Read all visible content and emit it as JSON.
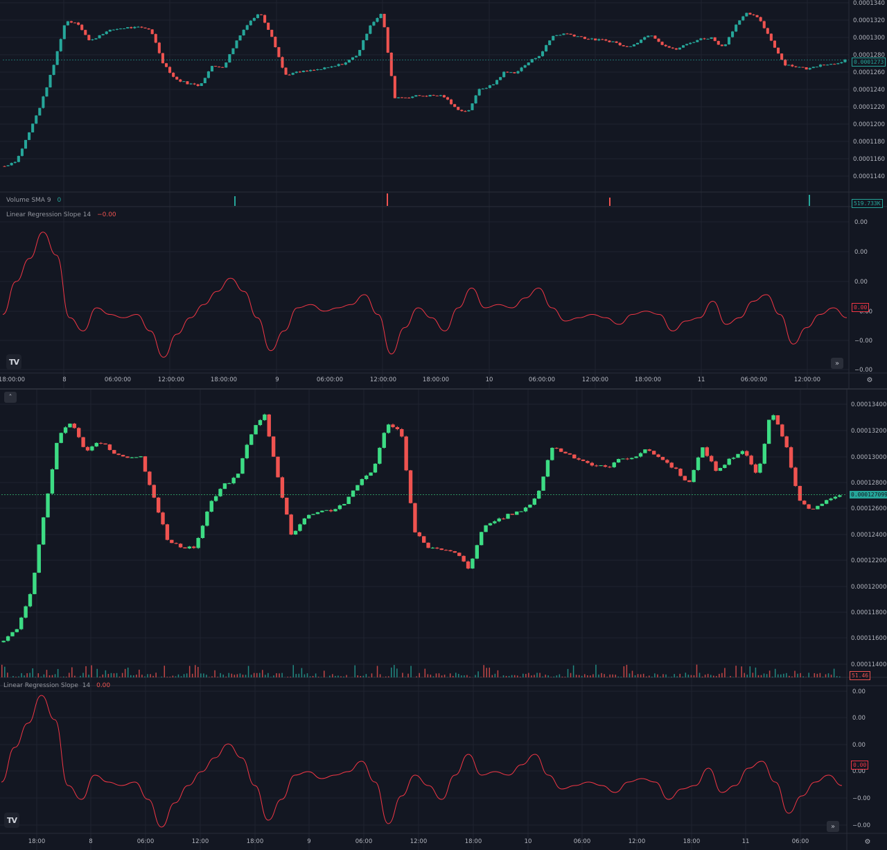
{
  "colors": {
    "up": "#26a69a",
    "up_bright": "#3ddc84",
    "down": "#ef5350",
    "line": "#f23645",
    "grid": "#1f2330",
    "bg": "#131722",
    "text": "#b2b5be"
  },
  "top": {
    "price_ticks": [
      "0.0001340",
      "0.0001320",
      "0.0001300",
      "0.0001280",
      "0.0001260",
      "0.0001240",
      "0.0001220",
      "0.0001200",
      "0.0001180",
      "0.0001160",
      "0.0001140"
    ],
    "last_price": "0.0001273",
    "volume_label": "Volume SMA 9",
    "volume_value": "0",
    "volume_tag": "519.733K",
    "indicator_label": "Linear Regression Slope 14",
    "indicator_value": "−0.00",
    "slope_ticks": [
      "0.00",
      "0.00",
      "0.00",
      "−0.00",
      "−0.00",
      "−0.00"
    ],
    "slope_tag": "0.00",
    "time_labels": [
      "18:00:00",
      "8",
      "06:00:00",
      "12:00:00",
      "18:00:00",
      "9",
      "06:00:00",
      "12:00:00",
      "18:00:00",
      "10",
      "06:00:00",
      "12:00:00",
      "18:00:00",
      "11",
      "06:00:00",
      "12:00:00"
    ],
    "logo_text": "TV",
    "goto_icon": "double-chevron-right-icon",
    "settings_icon": "gear-icon"
  },
  "bottom": {
    "price_ticks": [
      "0.000134000",
      "0.000132000",
      "0.000130000",
      "0.000128000",
      "0.000126000",
      "0.000124000",
      "0.000122000",
      "0.000120000",
      "0.000118000",
      "0.000116000",
      "0.000114000"
    ],
    "last_price": "0.000127099",
    "volume_tag": "51.46",
    "indicator_label": "Linear Regression Slope",
    "indicator_len": "14",
    "indicator_value": "0.00",
    "slope_ticks": [
      "0.00",
      "0.00",
      "0.00",
      "0.00",
      "−0.00",
      "−0.00"
    ],
    "slope_tag": "0.00",
    "time_labels": [
      "18:00",
      "8",
      "06:00",
      "12:00",
      "18:00",
      "9",
      "06:00",
      "12:00",
      "18:00",
      "10",
      "06:00",
      "12:00",
      "18:00",
      "11",
      "06:00"
    ],
    "logo_text": "TV",
    "collapse_icon": "chevron-up-icon",
    "goto_icon": "double-chevron-right-icon",
    "settings_icon": "gear-icon"
  },
  "chart_data": [
    {
      "type": "candlestick",
      "title": "",
      "ylim": [
        0.000113,
        0.0001342
      ],
      "close_path": [
        0.0001145,
        0.0001152,
        0.0001185,
        0.000122,
        0.0001265,
        0.000132,
        0.0001318,
        0.0001295,
        0.0001305,
        0.000131,
        0.0001312,
        0.0001312,
        0.000131,
        0.000127,
        0.000125,
        0.0001245,
        0.0001242,
        0.0001265,
        0.0001265,
        0.0001295,
        0.0001318,
        0.000133,
        0.00013,
        0.0001255,
        0.0001258,
        0.000126,
        0.0001262,
        0.0001265,
        0.000127,
        0.000128,
        0.0001315,
        0.000133,
        0.0001228,
        0.0001228,
        0.000123,
        0.000123,
        0.000123,
        0.0001215,
        0.000121,
        0.0001238,
        0.0001242,
        0.0001258,
        0.0001258,
        0.000127,
        0.000128,
        0.0001302,
        0.0001305,
        0.0001302,
        0.0001298,
        0.0001297,
        0.0001295,
        0.0001288,
        0.0001295,
        0.0001305,
        0.0001292,
        0.0001285,
        0.0001292,
        0.0001298,
        0.00013,
        0.0001288,
        0.0001315,
        0.000133,
        0.0001322,
        0.0001295,
        0.0001268,
        0.0001265,
        0.0001262,
        0.0001268,
        0.0001268,
        0.0001273
      ],
      "volume_sma": 0
    },
    {
      "type": "candlestick",
      "title": "",
      "ylim": [
        0.000113,
        0.0001345
      ],
      "close_path": [
        0.000115,
        0.0001162,
        0.000119,
        0.0001258,
        0.000132,
        0.000133,
        0.0001305,
        0.0001315,
        0.0001305,
        0.0001302,
        0.0001302,
        0.0001268,
        0.0001232,
        0.0001228,
        0.0001228,
        0.0001262,
        0.0001278,
        0.0001285,
        0.000132,
        0.0001338,
        0.0001285,
        0.0001238,
        0.0001252,
        0.0001258,
        0.0001258,
        0.0001265,
        0.0001282,
        0.0001292,
        0.000133,
        0.0001322,
        0.000124,
        0.0001228,
        0.0001225,
        0.0001223,
        0.000121,
        0.0001245,
        0.000125,
        0.0001255,
        0.0001258,
        0.0001272,
        0.000131,
        0.0001305,
        0.00013,
        0.0001295,
        0.0001293,
        0.00013,
        0.0001302,
        0.0001308,
        0.00013,
        0.0001292,
        0.000128,
        0.000131,
        0.000129,
        0.00013,
        0.0001308,
        0.0001285,
        0.000134,
        0.0001315,
        0.0001268,
        0.0001258,
        0.0001265,
        0.000127099
      ],
      "last_volume": 51.46
    },
    {
      "type": "line",
      "title": "Linear Regression Slope 14",
      "ylim": [
        -1,
        1
      ],
      "values": [
        -0.3,
        0.2,
        0.55,
        0.95,
        0.6,
        -0.35,
        -0.55,
        -0.2,
        -0.3,
        -0.35,
        -0.3,
        -0.55,
        -0.95,
        -0.6,
        -0.35,
        -0.15,
        0.05,
        0.25,
        0.05,
        -0.35,
        -0.85,
        -0.55,
        -0.2,
        -0.15,
        -0.25,
        -0.2,
        -0.15,
        0.0,
        -0.3,
        -0.9,
        -0.5,
        -0.2,
        -0.35,
        -0.55,
        -0.2,
        0.1,
        -0.2,
        -0.15,
        -0.2,
        -0.05,
        0.1,
        -0.2,
        -0.4,
        -0.35,
        -0.3,
        -0.35,
        -0.45,
        -0.3,
        -0.25,
        -0.3,
        -0.55,
        -0.4,
        -0.35,
        -0.1,
        -0.45,
        -0.35,
        -0.1,
        0.0,
        -0.3,
        -0.75,
        -0.5,
        -0.3,
        -0.2,
        -0.35
      ]
    }
  ]
}
